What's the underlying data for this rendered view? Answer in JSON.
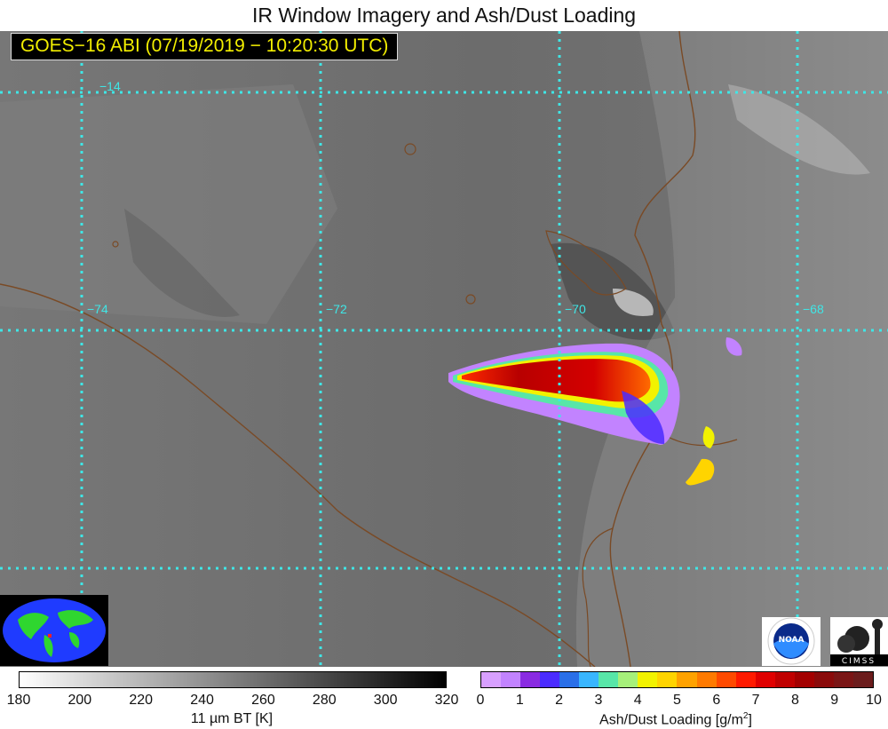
{
  "title": "IR Window Imagery and Ash/Dust Loading",
  "subtitle": "GOES−16 ABI (07/19/2019 − 10:20:30 UTC)",
  "map": {
    "lat_label": "−14",
    "lon_labels": [
      "−74",
      "−72",
      "−70",
      "−68"
    ],
    "grid_color": "#3fe6e6",
    "border_color": "#7a4a25"
  },
  "colorbars": {
    "ir": {
      "ticks": [
        "180",
        "200",
        "220",
        "240",
        "260",
        "280",
        "300",
        "320"
      ],
      "label": "11 µm BT [K]",
      "colors": [
        "#ffffff",
        "#000000"
      ]
    },
    "ash": {
      "ticks": [
        "0",
        "1",
        "2",
        "3",
        "4",
        "5",
        "6",
        "7",
        "8",
        "9",
        "10"
      ],
      "label_main": "Ash/Dust Loading [g/m",
      "label_sup": "2",
      "label_end": "]",
      "colors": [
        "#d8a0ff",
        "#c283ff",
        "#8a2be2",
        "#4b2cff",
        "#2a6fe8",
        "#39b6ff",
        "#58e6a8",
        "#a6f07a",
        "#f2f200",
        "#ffd400",
        "#ffa200",
        "#ff7a00",
        "#ff4a00",
        "#ff1a00",
        "#e00000",
        "#c00000",
        "#a30000",
        "#8a0a0a",
        "#7a1515",
        "#6b1c1c"
      ]
    }
  },
  "logos": {
    "noaa": "NOAA",
    "cimss": "CIMSS"
  }
}
